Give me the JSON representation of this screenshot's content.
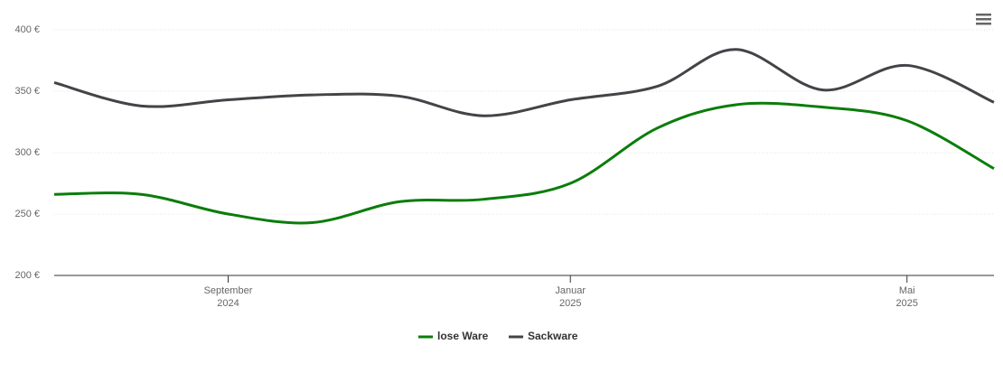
{
  "chart_data": {
    "type": "line",
    "x": [
      "2024-07",
      "2024-08",
      "2024-09",
      "2024-10",
      "2024-11",
      "2024-12",
      "2025-01",
      "2025-02",
      "2025-03",
      "2025-04",
      "2025-05",
      "2025-06"
    ],
    "series": [
      {
        "name": "lose Ware",
        "color": "#0a7d0a",
        "values": [
          266,
          266,
          250,
          243,
          260,
          262,
          275,
          320,
          339,
          337,
          326,
          287
        ]
      },
      {
        "name": "Sackware",
        "color": "#434348",
        "values": [
          357,
          338,
          343,
          347,
          346,
          330,
          343,
          354,
          384,
          351,
          371,
          341
        ]
      }
    ],
    "xlim": [
      "2024-07",
      "2025-06"
    ],
    "xticks": [
      {
        "value": "2024-09",
        "label": [
          "September",
          "2024"
        ]
      },
      {
        "value": "2025-01",
        "label": [
          "Januar",
          "2025"
        ]
      },
      {
        "value": "2025-05",
        "label": [
          "Mai",
          "2025"
        ]
      }
    ],
    "ylim": [
      200,
      400
    ],
    "yticks": [
      {
        "value": 200,
        "label": "200 €"
      },
      {
        "value": 250,
        "label": "250 €"
      },
      {
        "value": 300,
        "label": "300 €"
      },
      {
        "value": 350,
        "label": "350 €"
      },
      {
        "value": 400,
        "label": "400 €"
      }
    ],
    "grid": true,
    "legend": "bottom"
  }
}
